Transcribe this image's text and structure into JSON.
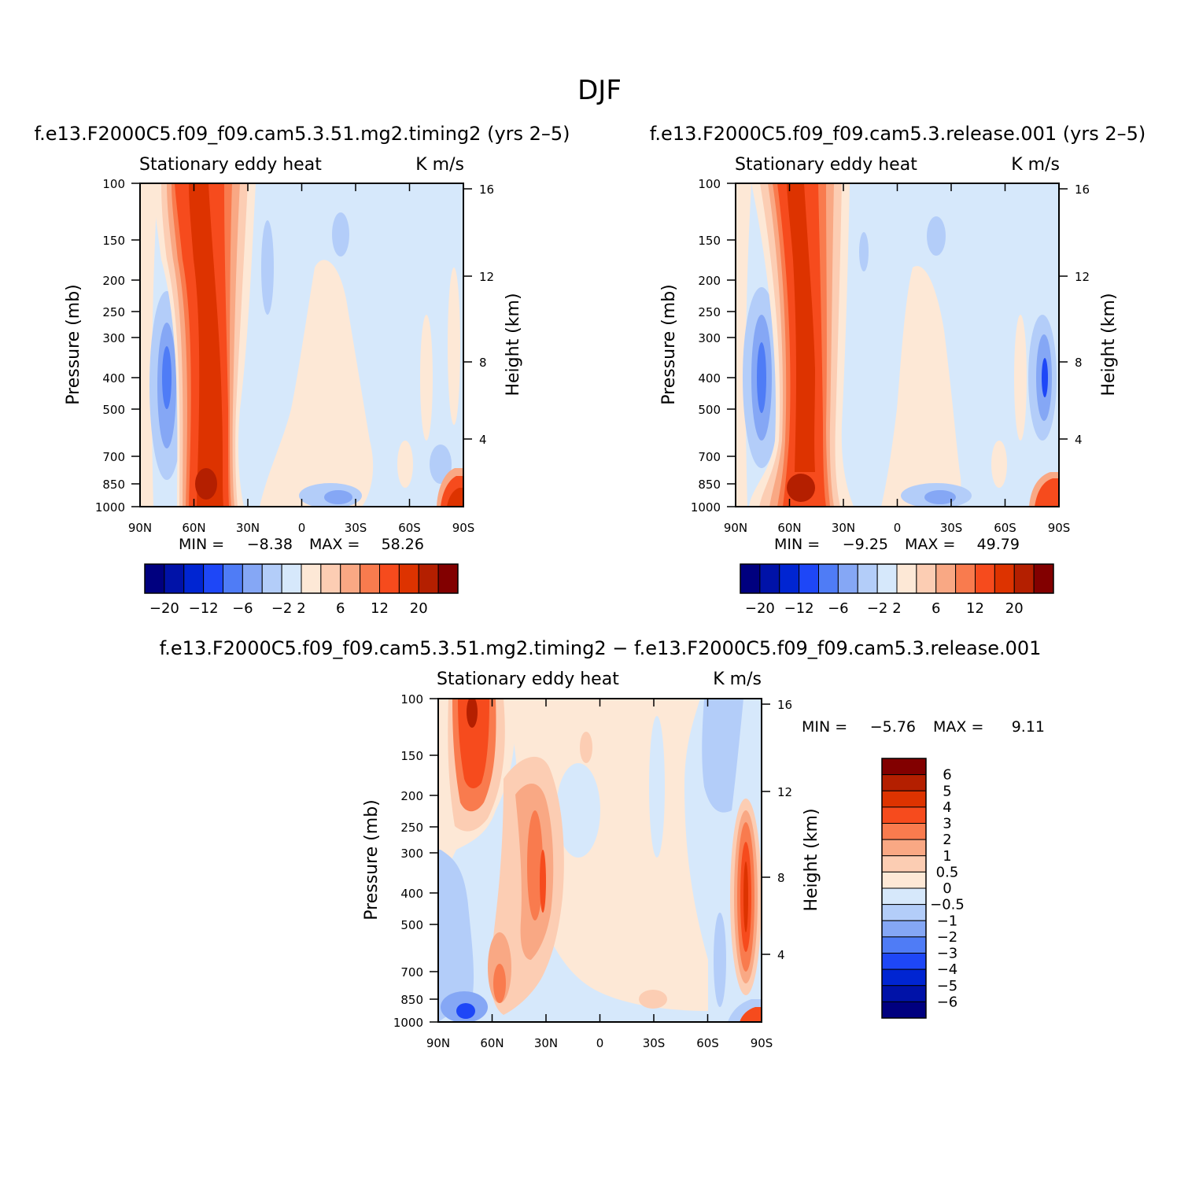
{
  "chart_data": {
    "type": "heatmap",
    "title": "DJF",
    "colors": {
      "abs": [
        "#00007f",
        "#0012a8",
        "#0025d2",
        "#1e47f7",
        "#4f7cf6",
        "#85a7f5",
        "#b3cdf9",
        "#d6e8fb",
        "#fde8d6",
        "#fccdb3",
        "#f9a884",
        "#f97b4e",
        "#f64b1d",
        "#dd3300",
        "#b41f00",
        "#820000"
      ],
      "diff": [
        "#00007f",
        "#0012a8",
        "#0025d2",
        "#1e47f7",
        "#4f7cf6",
        "#85a7f5",
        "#b3cdf9",
        "#d6e8fb",
        "#fde8d6",
        "#fccdb3",
        "#f9a884",
        "#f97b4e",
        "#f64b1d",
        "#dd3300",
        "#b41f00",
        "#820000"
      ]
    },
    "panels": [
      {
        "id": "case1",
        "title": "f.e13.F2000C5.f09_f09.cam5.3.51.mg2.timing2 (yrs 2–5)",
        "subtitle_left": "Stationary eddy heat",
        "subtitle_right": "K m/s",
        "ylabel": "Pressure (mb)",
        "ylabel_right": "Height (km)",
        "x_ticks": [
          "90N",
          "60N",
          "30N",
          "0",
          "30S",
          "60S",
          "90S"
        ],
        "y_ticks": [
          "100",
          "150",
          "200",
          "250",
          "300",
          "400",
          "500",
          "700",
          "850",
          "1000"
        ],
        "y_ticks_right": [
          "16",
          "12",
          "8",
          "4"
        ],
        "min_label": "MIN =",
        "min_value": "−8.38",
        "max_label": "MAX =",
        "max_value": "58.26",
        "colorbar_labels": [
          "−20",
          "−12",
          "−6",
          "−2",
          "2",
          "6",
          "12",
          "20"
        ]
      },
      {
        "id": "case2",
        "title": "f.e13.F2000C5.f09_f09.cam5.3.release.001 (yrs 2–5)",
        "subtitle_left": "Stationary eddy heat",
        "subtitle_right": "K m/s",
        "ylabel": "Pressure (mb)",
        "ylabel_right": "Height (km)",
        "x_ticks": [
          "90N",
          "60N",
          "30N",
          "0",
          "30S",
          "60S",
          "90S"
        ],
        "y_ticks": [
          "100",
          "150",
          "200",
          "250",
          "300",
          "400",
          "500",
          "700",
          "850",
          "1000"
        ],
        "y_ticks_right": [
          "16",
          "12",
          "8",
          "4"
        ],
        "min_label": "MIN =",
        "min_value": "−9.25",
        "max_label": "MAX =",
        "max_value": "49.79",
        "colorbar_labels": [
          "−20",
          "−12",
          "−6",
          "−2",
          "2",
          "6",
          "12",
          "20"
        ]
      },
      {
        "id": "diff",
        "title": "f.e13.F2000C5.f09_f09.cam5.3.51.mg2.timing2 − f.e13.F2000C5.f09_f09.cam5.3.release.001",
        "subtitle_left": "Stationary eddy heat",
        "subtitle_right": "K m/s",
        "ylabel": "Pressure (mb)",
        "ylabel_right": "Height (km)",
        "x_ticks": [
          "90N",
          "60N",
          "30N",
          "0",
          "30S",
          "60S",
          "90S"
        ],
        "y_ticks": [
          "100",
          "150",
          "200",
          "250",
          "300",
          "400",
          "500",
          "700",
          "850",
          "1000"
        ],
        "y_ticks_right": [
          "16",
          "12",
          "8",
          "4"
        ],
        "min_label": "MIN =",
        "min_value": "−5.76",
        "max_label": "MAX =",
        "max_value": "9.11",
        "colorbar_labels": [
          "6",
          "5",
          "4",
          "3",
          "2",
          "1",
          "0.5",
          "0",
          "−0.5",
          "−1",
          "−2",
          "−3",
          "−4",
          "−5",
          "−6"
        ]
      }
    ]
  }
}
